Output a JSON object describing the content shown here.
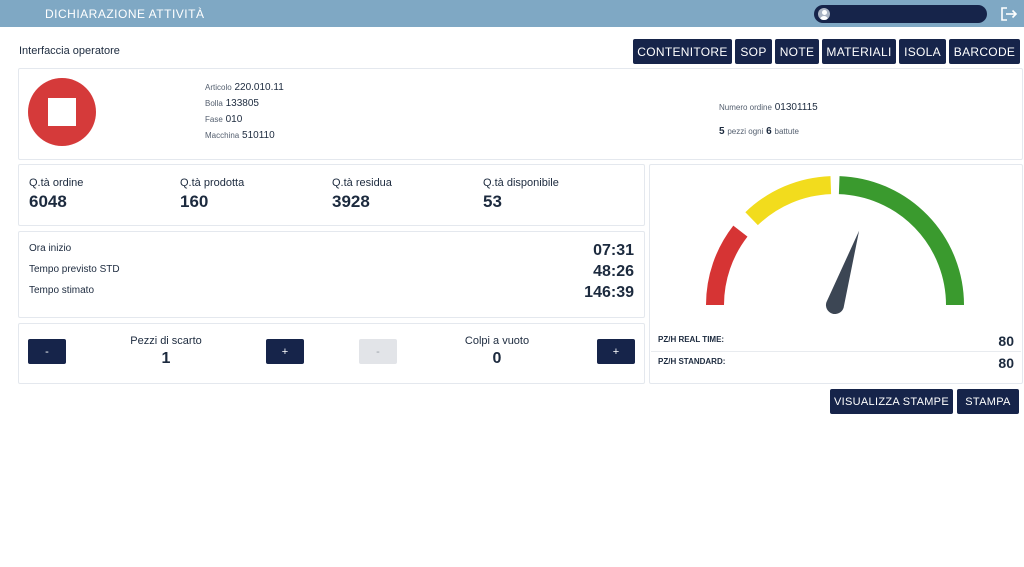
{
  "header": {
    "title": "DICHIARAZIONE ATTIVITÀ",
    "user_name": "",
    "icons": {
      "user": "user-avatar-icon",
      "logout": "logout-icon"
    }
  },
  "page": {
    "title": "Interfaccia operatore"
  },
  "toolbar": {
    "buttons": [
      "CONTENITORE",
      "SOP",
      "NOTE",
      "MATERIALI",
      "ISOLA",
      "BARCODE"
    ]
  },
  "status": {
    "state_icon": "stop-icon",
    "color": "#d53a3a"
  },
  "job": {
    "articolo_label": "Articolo",
    "articolo": "220.010.11",
    "bolla_label": "Bolla",
    "bolla": "133805",
    "fase_label": "Fase",
    "fase": "010",
    "macchina_label": "Macchina",
    "macchina": "510110",
    "ordine_label": "Numero ordine",
    "ordine": "01301115",
    "pezzi": "5",
    "pezzi_text": "pezzi ogni",
    "battute": "6",
    "battute_text": "battute"
  },
  "quantities": [
    {
      "label": "Q.tà ordine",
      "value": "6048"
    },
    {
      "label": "Q.tà prodotta",
      "value": "160"
    },
    {
      "label": "Q.tà residua",
      "value": "3928"
    },
    {
      "label": "Q.tà disponibile",
      "value": "53"
    }
  ],
  "times": [
    {
      "label": "Ora inizio",
      "value": "07:31"
    },
    {
      "label": "Tempo previsto STD",
      "value": "48:26"
    },
    {
      "label": "Tempo stimato",
      "value": "146:39"
    }
  ],
  "counters": {
    "scarto": {
      "label": "Pezzi di scarto",
      "value": "1",
      "minus": "-",
      "plus": "+"
    },
    "vuoto": {
      "label": "Colpi a vuoto",
      "value": "0",
      "minus": "-",
      "plus": "+"
    }
  },
  "gauge": {
    "segments": [
      {
        "color": "#d63434"
      },
      {
        "color": "#f2dc1d"
      },
      {
        "color": "#3a9a2e"
      }
    ],
    "needle_fraction": 0.6,
    "needle_color": "#3c4654"
  },
  "rates": {
    "real_time_label": "PZ/H REAL TIME:",
    "real_time_value": "80",
    "standard_label": "PZ/H STANDARD:",
    "standard_value": "80"
  },
  "actions": {
    "view_prints": "VISUALIZZA STAMPE",
    "print": "STAMPA"
  }
}
